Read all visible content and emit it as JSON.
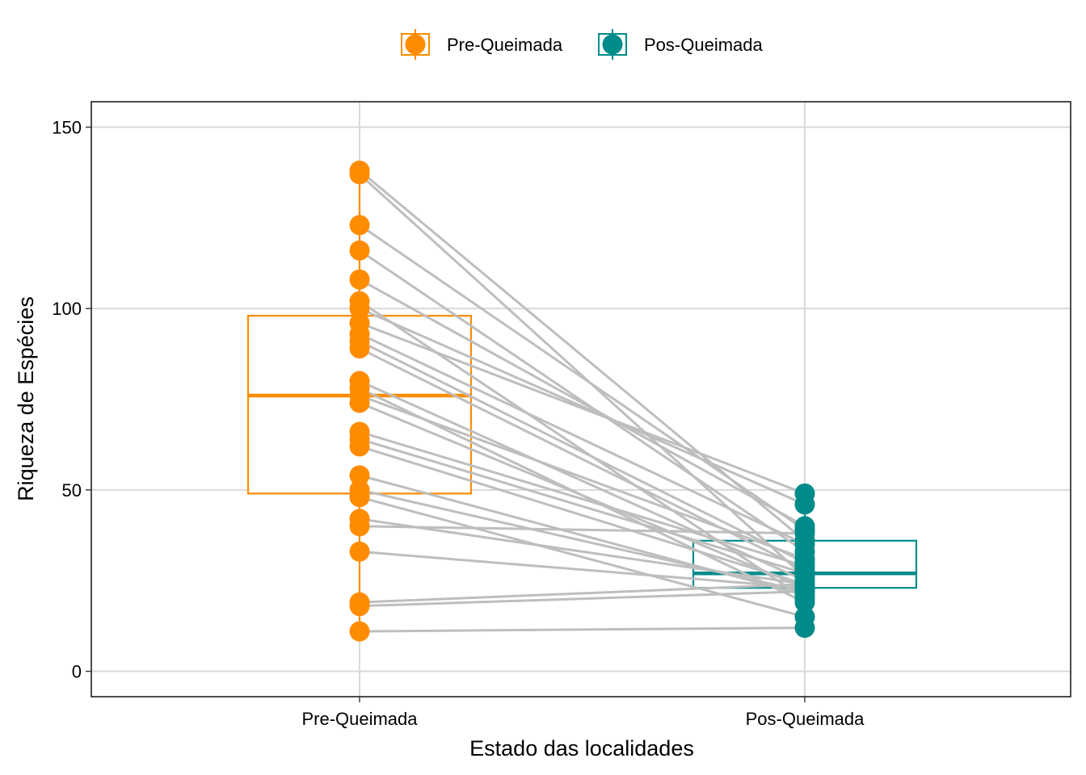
{
  "chart_data": {
    "type": "boxplot-paired",
    "xlabel": "Estado das localidades",
    "ylabel": "Riqueza de Espécies",
    "categories": [
      "Pre-Queimada",
      "Pos-Queimada"
    ],
    "ylim": [
      -7,
      157
    ],
    "yticks": [
      0,
      50,
      100,
      150
    ],
    "grid": true,
    "legend_position": "top",
    "legend": [
      {
        "label": "Pre-Queimada",
        "color": "#FF8C00"
      },
      {
        "label": "Pos-Queimada",
        "color": "#008B8B"
      }
    ],
    "connector_color": "#BEBEBE",
    "boxes": [
      {
        "category": "Pre-Queimada",
        "q1": 49,
        "median": 76,
        "q3": 98,
        "whisker_low": 11,
        "whisker_high": 138,
        "color": "#FF8C00"
      },
      {
        "category": "Pos-Queimada",
        "q1": 23,
        "median": 27,
        "q3": 36,
        "whisker_low": 12,
        "whisker_high": 49,
        "color": "#008B8B"
      }
    ],
    "pairs": [
      {
        "pre": 138,
        "pos": 36
      },
      {
        "pre": 137,
        "pos": 26
      },
      {
        "pre": 123,
        "pos": 39
      },
      {
        "pre": 116,
        "pos": 33
      },
      {
        "pre": 108,
        "pos": 40
      },
      {
        "pre": 102,
        "pos": 20
      },
      {
        "pre": 100,
        "pos": 46
      },
      {
        "pre": 96,
        "pos": 49
      },
      {
        "pre": 93,
        "pos": 35
      },
      {
        "pre": 91,
        "pos": 30
      },
      {
        "pre": 89,
        "pos": 28
      },
      {
        "pre": 80,
        "pos": 25
      },
      {
        "pre": 78,
        "pos": 19
      },
      {
        "pre": 76,
        "pos": 31
      },
      {
        "pre": 74,
        "pos": 23
      },
      {
        "pre": 66,
        "pos": 29
      },
      {
        "pre": 64,
        "pos": 27
      },
      {
        "pre": 62,
        "pos": 24
      },
      {
        "pre": 54,
        "pos": 21
      },
      {
        "pre": 50,
        "pos": 22
      },
      {
        "pre": 48,
        "pos": 15
      },
      {
        "pre": 42,
        "pos": 24
      },
      {
        "pre": 40,
        "pos": 38
      },
      {
        "pre": 33,
        "pos": 23
      },
      {
        "pre": 19,
        "pos": 24
      },
      {
        "pre": 18,
        "pos": 22
      },
      {
        "pre": 11,
        "pos": 12
      }
    ]
  }
}
